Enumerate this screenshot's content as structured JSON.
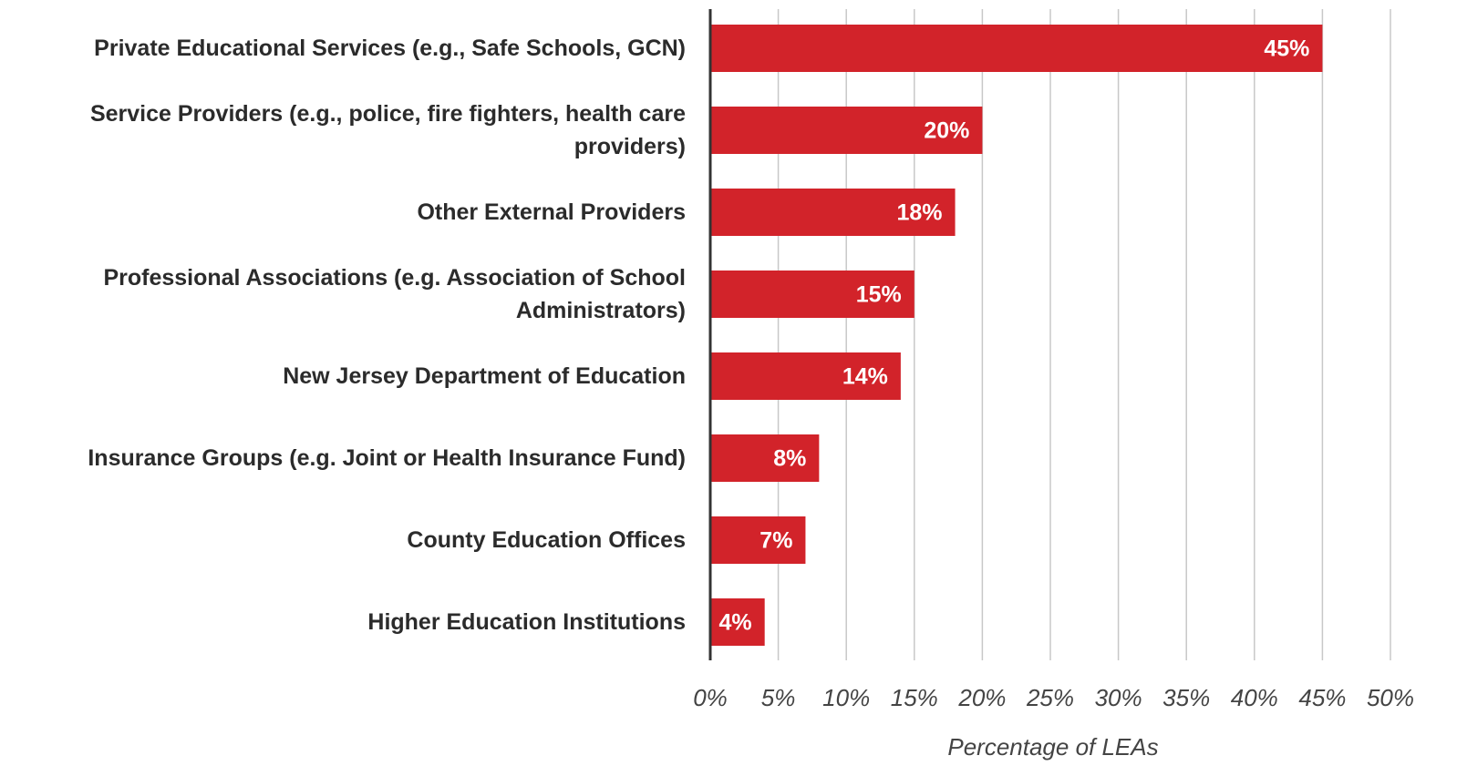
{
  "chart_data": {
    "type": "bar",
    "orientation": "horizontal",
    "x_label": "Percentage of LEAs",
    "categories": [
      "Private Educational Services (e.g., Safe Schools, GCN)",
      "Service Providers (e.g., police, fire fighters, health care providers)",
      "Other External Providers",
      "Professional Associations (e.g. Association of School Administrators)",
      "New Jersey Department of Education",
      "Insurance Groups (e.g. Joint or Health Insurance Fund)",
      "County Education Offices",
      "Higher Education Institutions"
    ],
    "values": [
      45,
      20,
      18,
      15,
      14,
      8,
      7,
      4
    ],
    "value_labels": [
      "45%",
      "20%",
      "18%",
      "15%",
      "14%",
      "8%",
      "7%",
      "4%"
    ],
    "color": "#d2232a",
    "xlim": [
      0,
      50
    ],
    "xticks": [
      {
        "value": 0,
        "label": "0%"
      },
      {
        "value": 5,
        "label": "5%"
      },
      {
        "value": 10,
        "label": "10%"
      },
      {
        "value": 15,
        "label": "15%"
      },
      {
        "value": 20,
        "label": "20%"
      },
      {
        "value": 25,
        "label": "25%"
      },
      {
        "value": 30,
        "label": "30%"
      },
      {
        "value": 35,
        "label": "35%"
      },
      {
        "value": 40,
        "label": "40%"
      },
      {
        "value": 45,
        "label": "45%"
      },
      {
        "value": 50,
        "label": "50%"
      }
    ],
    "grid": true
  }
}
